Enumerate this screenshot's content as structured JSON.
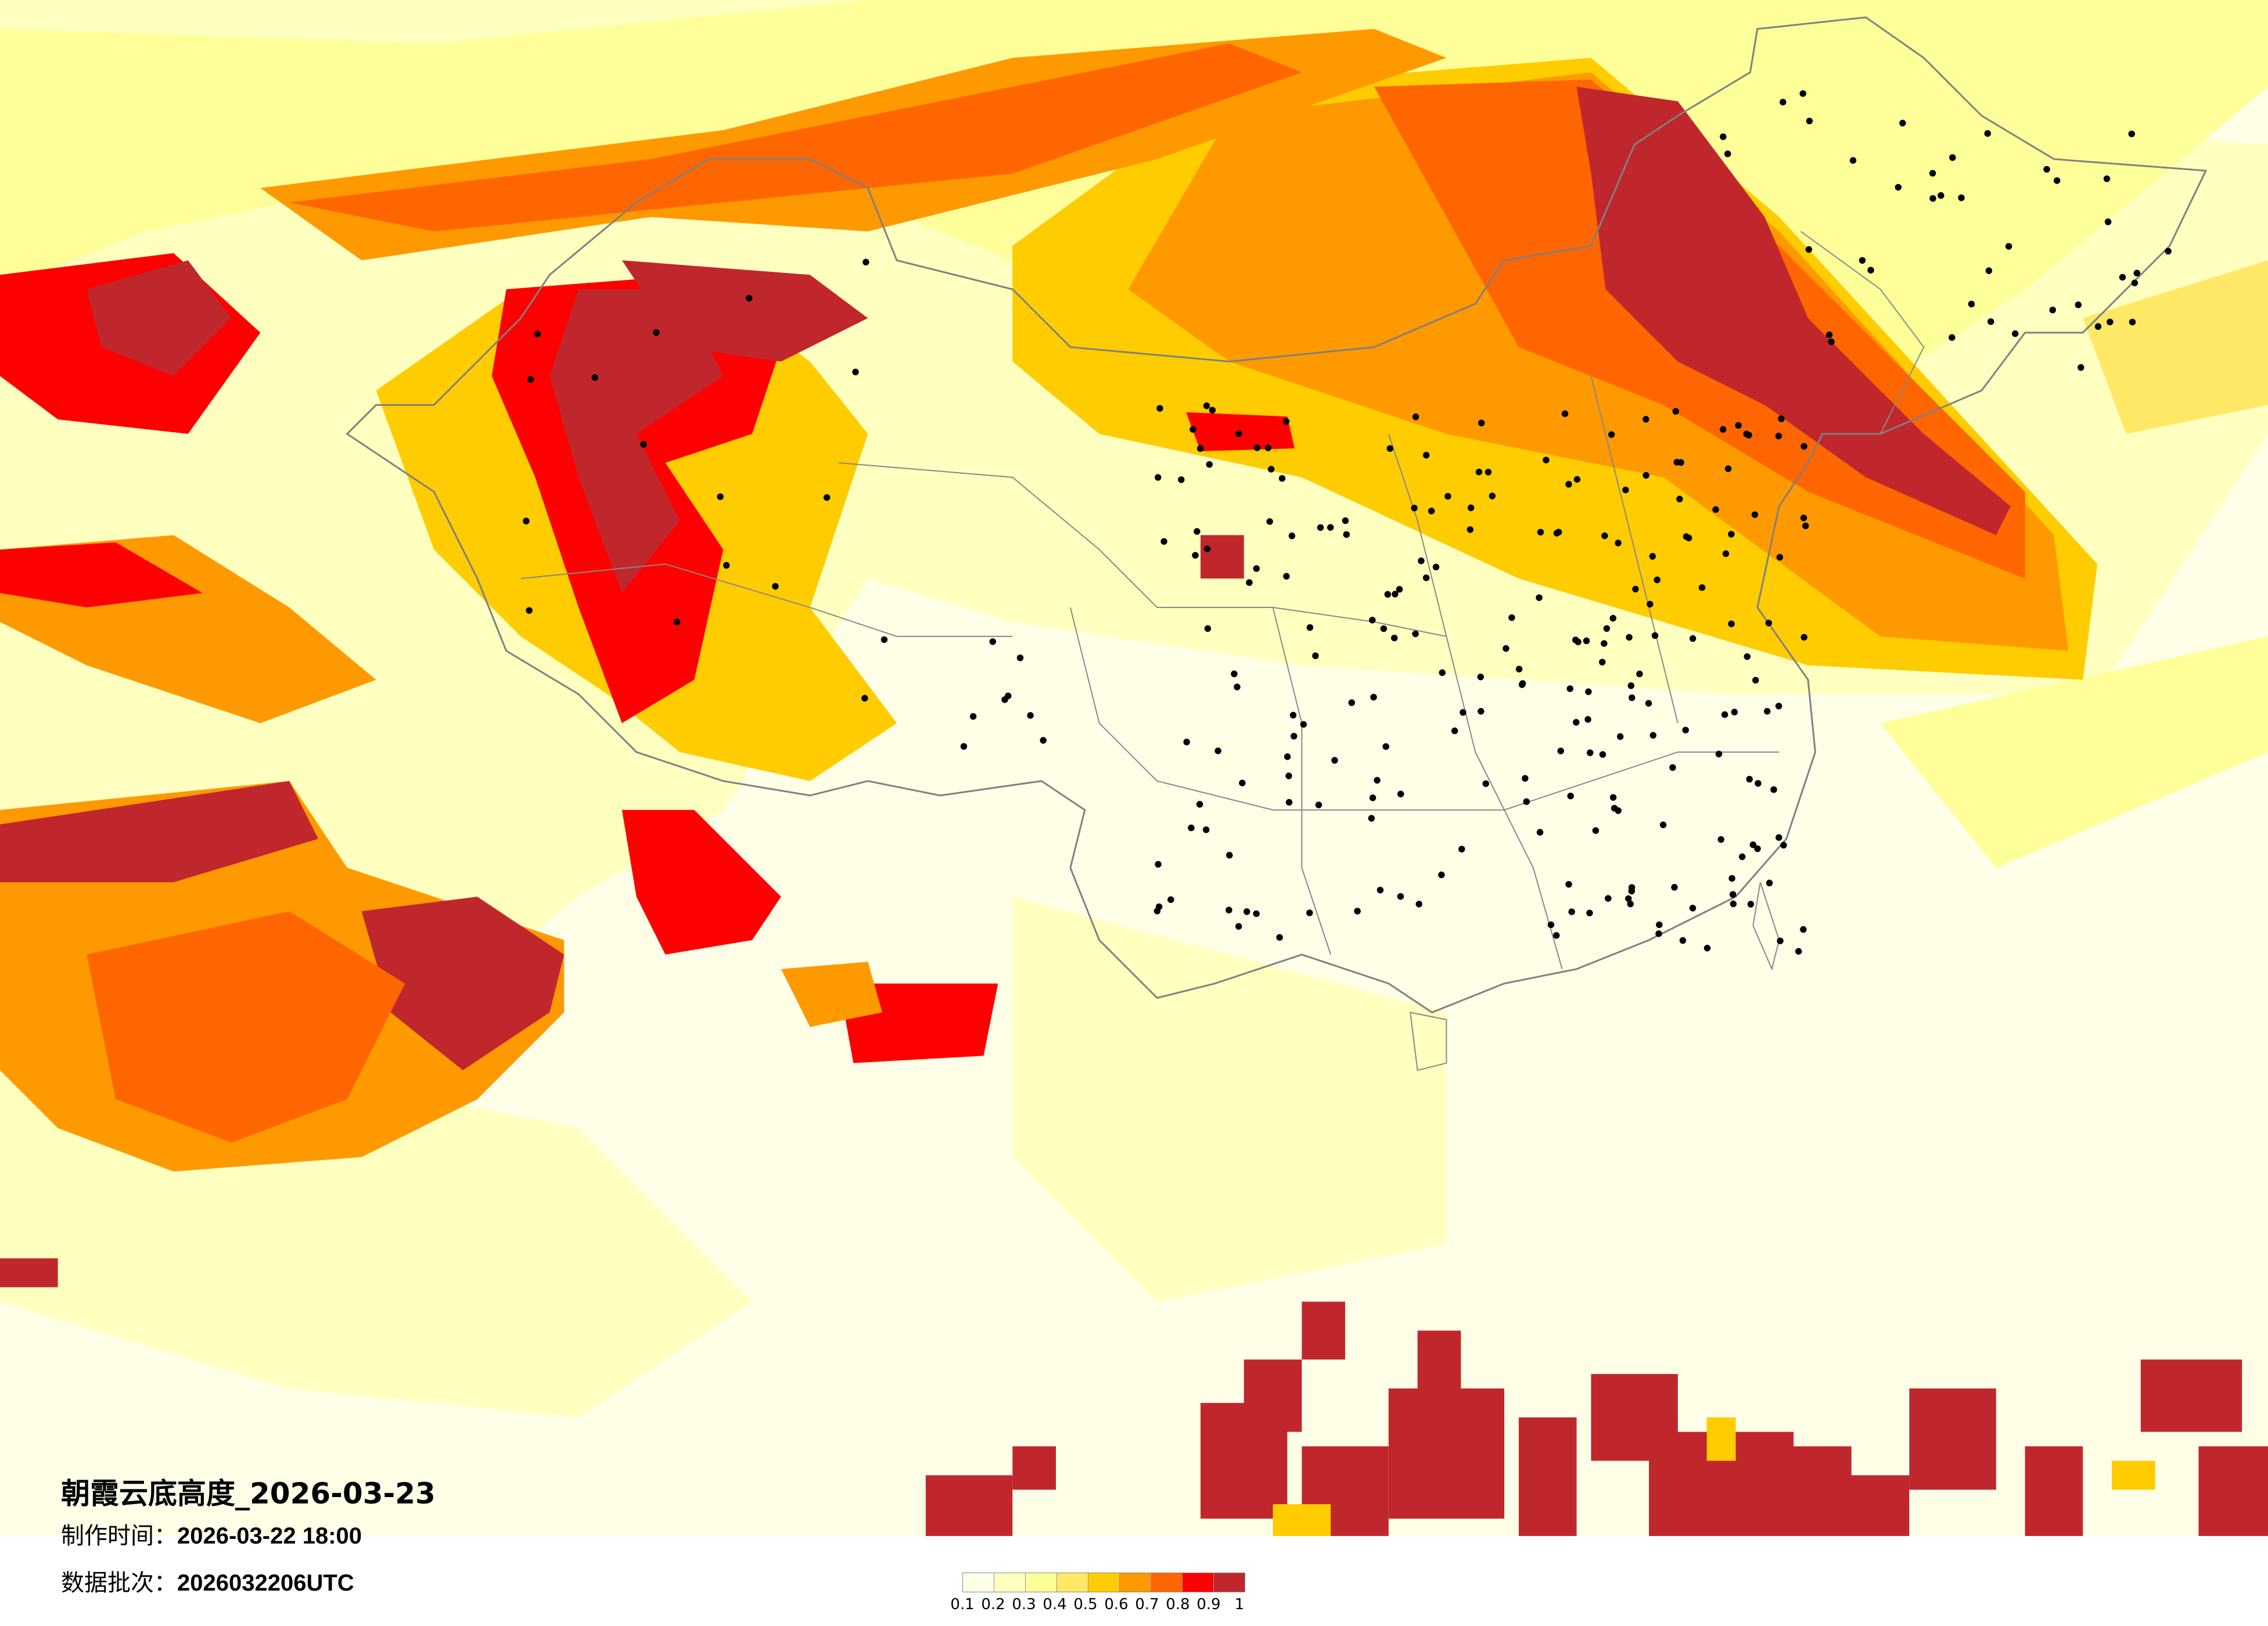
{
  "title": "朝霞云底高度_2026-03-23",
  "production_time": {
    "label": "制作时间：",
    "value": "2026-03-22 18:00"
  },
  "data_batch": {
    "label": "数据批次：",
    "value": "2026032206UTC"
  },
  "legend": {
    "colors": [
      "#FFFFE8",
      "#FFFFC0",
      "#FFFF99",
      "#FFE866",
      "#FFCC00",
      "#FF9900",
      "#FF6600",
      "#FF0000",
      "#C0272D"
    ],
    "labels": [
      "0.1",
      "0.2",
      "0.3",
      "0.4",
      "0.5",
      "0.6",
      "0.7",
      "0.8",
      "0.9",
      "1"
    ]
  },
  "map": {
    "background_color": "#FFFFE8",
    "border_color": "#808080",
    "city_marker_color": "#000000"
  }
}
